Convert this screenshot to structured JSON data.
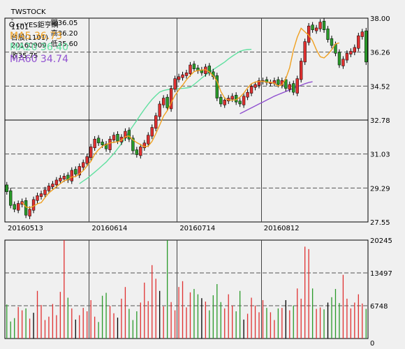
{
  "header": {
    "ticker": "TWSTOCK",
    "separator": "-",
    "code": "1101",
    "name": "台股(1101)",
    "date": "20160909",
    "close_label": "收35.75",
    "open_label": "開36.05",
    "high_label": "高36.20",
    "low_label": "低35.60"
  },
  "legend": {
    "watermark": "cnYES鉅亨網",
    "ma5": "MA5 36.73",
    "ma20": "MA20 36.40",
    "ma60": "MA60 34.74"
  },
  "colors": {
    "up": "#e03030",
    "down": "#2a9a2a",
    "ma5": "#f0a020",
    "ma20": "#60e0a0",
    "ma60": "#9050d0",
    "background": "#f0f0f0",
    "grid": "#444444"
  },
  "chart_data": [
    {
      "type": "candlestick",
      "x_tick_labels": [
        "20160513",
        "20160614",
        "20160714",
        "20160812"
      ],
      "y_tick_labels": [
        "38.00",
        "36.26",
        "34.52",
        "32.78",
        "31.03",
        "29.29",
        "27.55"
      ],
      "ylim": [
        27.55,
        38.0
      ],
      "closes": [
        29.1,
        28.4,
        28.2,
        28.5,
        28.6,
        27.9,
        28.2,
        28.7,
        28.9,
        29.0,
        29.2,
        29.4,
        29.5,
        29.7,
        29.8,
        29.9,
        29.7,
        30.2,
        30.0,
        30.4,
        30.6,
        30.9,
        31.4,
        31.8,
        31.6,
        31.5,
        31.3,
        31.8,
        32.0,
        31.7,
        31.9,
        32.2,
        31.8,
        31.2,
        31.0,
        31.4,
        31.6,
        32.0,
        32.4,
        33.0,
        33.6,
        33.9,
        33.4,
        34.4,
        34.9,
        35.0,
        35.1,
        35.2,
        35.6,
        35.4,
        35.3,
        35.2,
        35.5,
        35.2,
        35.0,
        33.9,
        33.6,
        33.8,
        33.9,
        34.0,
        33.7,
        33.6,
        34.0,
        34.2,
        34.5,
        34.6,
        34.8,
        34.8,
        34.7,
        34.7,
        34.8,
        34.6,
        34.8,
        34.4,
        34.6,
        34.2,
        34.9,
        35.8,
        36.8,
        37.6,
        37.4,
        37.5,
        37.8,
        37.4,
        36.9,
        36.6,
        36.2,
        35.6,
        35.9,
        36.2,
        36.3,
        36.5,
        37.1,
        37.3,
        35.75
      ],
      "ma5": {
        "start_index": 4,
        "values": [
          28.56,
          28.32,
          28.28,
          28.36,
          28.48,
          28.54,
          28.8,
          29.04,
          29.2,
          29.36,
          29.52,
          29.66,
          29.72,
          29.86,
          29.88,
          30.02,
          30.18,
          30.42,
          30.66,
          31.02,
          31.26,
          31.44,
          31.52,
          31.6,
          31.64,
          31.66,
          31.74,
          31.92,
          31.96,
          31.76,
          31.62,
          31.52,
          31.4,
          31.44,
          31.68,
          32.08,
          32.52,
          32.98,
          33.26,
          33.66,
          34.04,
          34.32,
          34.56,
          34.84,
          35.06,
          35.26,
          35.32,
          35.34,
          35.36,
          35.24,
          35.04,
          34.76,
          34.24,
          33.9,
          33.8,
          33.8,
          33.82,
          33.94,
          34.16,
          34.42,
          34.64,
          34.72,
          34.76,
          34.76,
          34.72,
          34.72,
          34.66,
          34.52,
          34.58,
          34.9,
          35.46,
          36.38,
          37.02,
          37.48,
          37.3,
          37.12,
          36.84,
          36.38,
          36.02,
          35.96,
          36.14,
          36.38,
          36.68,
          36.73
        ]
      },
      "ma20": {
        "start_index": 19,
        "values": [
          29.51,
          29.65,
          29.78,
          29.94,
          30.1,
          30.27,
          30.45,
          30.62,
          30.84,
          31.05,
          31.31,
          31.56,
          31.86,
          32.19,
          32.47,
          32.75,
          33.05,
          33.33,
          33.59,
          33.83,
          34.03,
          34.21,
          34.29,
          34.33,
          34.36,
          34.39,
          34.39,
          34.4,
          34.42,
          34.45,
          34.6,
          34.76,
          34.93,
          35.08,
          35.23,
          35.36,
          35.49,
          35.62,
          35.75,
          35.91,
          36.05,
          36.18,
          36.3,
          36.36,
          36.39,
          36.4
        ]
      },
      "ma60": {
        "start_index": 61,
        "values": [
          33.1,
          33.2,
          33.3,
          33.4,
          33.5,
          33.6,
          33.7,
          33.8,
          33.9,
          34.0,
          34.08,
          34.16,
          34.24,
          34.32,
          34.4,
          34.48,
          34.56,
          34.64,
          34.7,
          34.74
        ]
      }
    },
    {
      "type": "bar",
      "y_tick_labels": [
        "20245",
        "13497",
        "6748",
        "0"
      ],
      "ylim": [
        0,
        20245
      ],
      "volumes": [
        7000,
        3500,
        4200,
        6500,
        5800,
        6200,
        4100,
        5300,
        9800,
        6900,
        3800,
        4500,
        7100,
        4800,
        9600,
        20245,
        8400,
        6200,
        3900,
        4800,
        6300,
        5600,
        7900,
        4500,
        3400,
        8800,
        9400,
        6700,
        5200,
        4300,
        8200,
        10600,
        6100,
        3800,
        5600,
        7400,
        11500,
        7700,
        15100,
        12300,
        9800,
        6600,
        20245,
        7500,
        5800,
        10600,
        11800,
        6400,
        9500,
        10200,
        9100,
        8300,
        7600,
        5800,
        8900,
        11200,
        7500,
        6200,
        9100,
        6800,
        5600,
        9800,
        3900,
        5100,
        8400,
        6800,
        5400,
        7900,
        6300,
        5400,
        3800,
        6200,
        6300,
        7900,
        5800,
        6800,
        10300,
        8200,
        18900,
        18400,
        10300,
        6100,
        6400,
        6000,
        7400,
        8500,
        10200,
        7300,
        13100,
        8200,
        6200,
        7400,
        9100,
        7200,
        6100
      ]
    }
  ]
}
